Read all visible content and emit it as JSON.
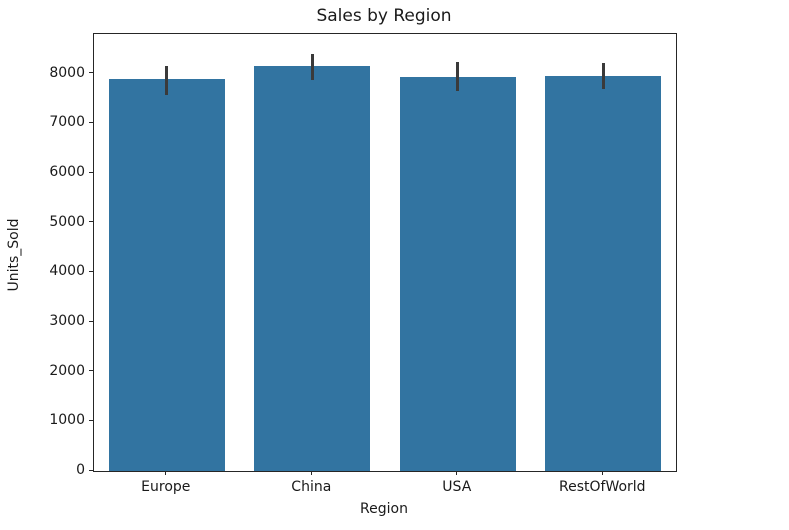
{
  "figure": {
    "background": "#ffffff",
    "frame_color": "#262626"
  },
  "chart_data": {
    "type": "bar",
    "title": "Sales by Region",
    "xlabel": "Region",
    "ylabel": "Units_Sold",
    "categories": [
      "Europe",
      "China",
      "USA",
      "RestOfWorld"
    ],
    "values": [
      7900,
      8150,
      7930,
      7950
    ],
    "error_bars": {
      "kind": "confidence-interval",
      "low": [
        7580,
        7880,
        7660,
        7700
      ],
      "high": [
        8150,
        8400,
        8230,
        8220
      ]
    },
    "ylim": [
      0,
      8800
    ],
    "yticks": [
      0,
      1000,
      2000,
      3000,
      4000,
      5000,
      6000,
      7000,
      8000
    ],
    "bar_color": "#3274a1",
    "error_color": "#3a3a3a",
    "bar_width_fraction": 0.8,
    "grid": false,
    "legend": "none"
  }
}
